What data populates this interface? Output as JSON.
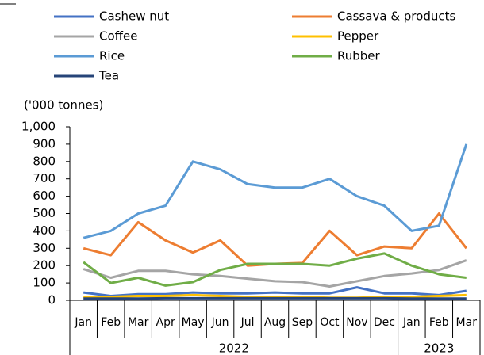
{
  "chart_data": {
    "type": "line",
    "y_unit_label": "('000 tonnes)",
    "categories": [
      "Jan",
      "Feb",
      "Mar",
      "Apr",
      "May",
      "Jun",
      "Jul",
      "Aug",
      "Sep",
      "Oct",
      "Nov",
      "Dec",
      "Jan",
      "Feb",
      "Mar"
    ],
    "groups": [
      {
        "label": "2022",
        "size": 12
      },
      {
        "label": "2023",
        "size": 3
      }
    ],
    "ylim": [
      0,
      1000
    ],
    "yticks": [
      0,
      100,
      200,
      300,
      400,
      500,
      600,
      700,
      800,
      900,
      {
        "value": 1000,
        "label": "1,000"
      }
    ],
    "grid": false,
    "series": [
      {
        "name": "Cashew nut",
        "color": "#4472c4",
        "values": [
          45,
          25,
          35,
          35,
          45,
          40,
          40,
          45,
          40,
          40,
          75,
          40,
          40,
          30,
          55
        ]
      },
      {
        "name": "Cassava & products",
        "color": "#ed7d31",
        "values": [
          300,
          260,
          450,
          345,
          275,
          345,
          200,
          210,
          215,
          400,
          260,
          310,
          300,
          500,
          300
        ]
      },
      {
        "name": "Coffee",
        "color": "#a5a5a5",
        "values": [
          180,
          130,
          170,
          170,
          150,
          140,
          125,
          110,
          105,
          80,
          110,
          140,
          155,
          175,
          230
        ]
      },
      {
        "name": "Pepper",
        "color": "#ffc000",
        "values": [
          20,
          20,
          25,
          25,
          30,
          25,
          20,
          20,
          20,
          15,
          15,
          20,
          20,
          25,
          30
        ]
      },
      {
        "name": "Rice",
        "color": "#5b9bd5",
        "values": [
          360,
          400,
          500,
          545,
          800,
          755,
          670,
          650,
          650,
          700,
          600,
          545,
          400,
          430,
          900
        ]
      },
      {
        "name": "Rubber",
        "color": "#70ad47",
        "values": [
          220,
          100,
          130,
          85,
          105,
          175,
          210,
          210,
          210,
          200,
          240,
          270,
          200,
          150,
          130
        ]
      },
      {
        "name": "Tea",
        "color": "#264478",
        "values": [
          10,
          10,
          10,
          12,
          12,
          12,
          12,
          12,
          12,
          12,
          12,
          12,
          10,
          10,
          10
        ]
      }
    ]
  }
}
